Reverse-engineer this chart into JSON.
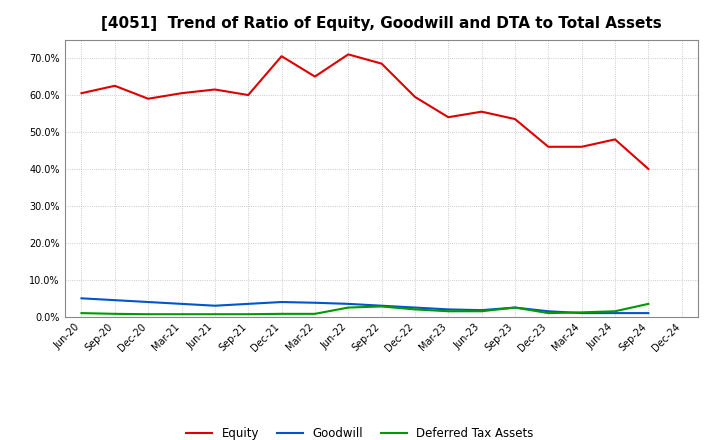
{
  "title": "[4051]  Trend of Ratio of Equity, Goodwill and DTA to Total Assets",
  "x_labels": [
    "Jun-20",
    "Sep-20",
    "Dec-20",
    "Mar-21",
    "Jun-21",
    "Sep-21",
    "Dec-21",
    "Mar-22",
    "Jun-22",
    "Sep-22",
    "Dec-22",
    "Mar-23",
    "Jun-23",
    "Sep-23",
    "Dec-23",
    "Mar-24",
    "Jun-24",
    "Sep-24",
    "Dec-24"
  ],
  "equity": [
    60.5,
    62.5,
    59.0,
    60.5,
    61.5,
    60.0,
    70.5,
    65.0,
    71.0,
    68.5,
    59.5,
    54.0,
    55.5,
    53.5,
    46.0,
    46.0,
    48.0,
    40.0,
    null
  ],
  "goodwill": [
    5.0,
    4.5,
    4.0,
    3.5,
    3.0,
    3.5,
    4.0,
    3.8,
    3.5,
    3.0,
    2.5,
    2.0,
    1.8,
    2.5,
    1.5,
    1.0,
    1.0,
    1.0,
    null
  ],
  "dta": [
    1.0,
    0.8,
    0.7,
    0.7,
    0.7,
    0.7,
    0.8,
    0.8,
    2.5,
    2.8,
    2.0,
    1.5,
    1.5,
    2.5,
    1.0,
    1.2,
    1.5,
    3.5,
    null
  ],
  "equity_color": "#dd0000",
  "goodwill_color": "#0055cc",
  "dta_color": "#009900",
  "background_color": "#ffffff",
  "plot_bg_color": "#ffffff",
  "ylim": [
    0,
    75
  ],
  "yticks": [
    0,
    10,
    20,
    30,
    40,
    50,
    60,
    70
  ],
  "grid_color": "#bbbbbb",
  "title_fontsize": 11,
  "legend_labels": [
    "Equity",
    "Goodwill",
    "Deferred Tax Assets"
  ]
}
